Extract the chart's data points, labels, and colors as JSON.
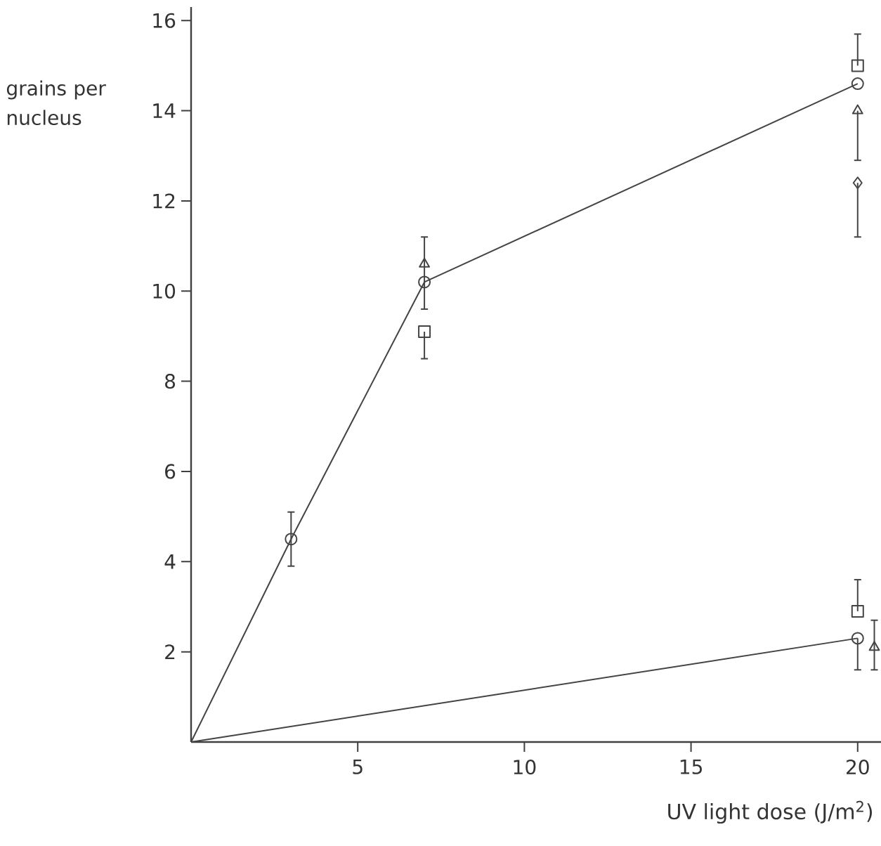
{
  "chart_data": {
    "type": "scatter",
    "xlabel": "UV light dose (J/m$^{2}$)",
    "ylabel": "grains per nucleus",
    "xlim": [
      0,
      20.7
    ],
    "ylim": [
      0,
      16.3
    ],
    "xticks": [
      5,
      10,
      15,
      20
    ],
    "yticks": [
      2,
      4,
      6,
      8,
      10,
      12,
      14,
      16
    ],
    "series": [
      {
        "type": "line",
        "marker": "none",
        "color": "#444444",
        "x": [
          0,
          3,
          7,
          20
        ],
        "values": [
          0,
          4.5,
          10.2,
          14.6
        ]
      },
      {
        "type": "line",
        "marker": "none",
        "color": "#444444",
        "x": [
          0,
          20
        ],
        "values": [
          0,
          2.3
        ]
      },
      {
        "marker": "circle",
        "color": "#444444",
        "x": [
          3,
          7,
          20
        ],
        "values": [
          4.5,
          10.2,
          14.6
        ],
        "errors": [
          [
            3.9,
            5.1
          ],
          [
            9.6,
            11.2
          ],
          null
        ]
      },
      {
        "marker": "triangle",
        "color": "#444444",
        "x": [
          7,
          20
        ],
        "values": [
          10.6,
          14.0
        ],
        "errors": [
          null,
          [
            12.9,
            14.0
          ]
        ]
      },
      {
        "marker": "square",
        "color": "#444444",
        "x": [
          7,
          20
        ],
        "values": [
          9.1,
          15.0
        ],
        "errors": [
          [
            8.5,
            9.1
          ],
          [
            15.0,
            15.7
          ]
        ]
      },
      {
        "marker": "diamond",
        "color": "#444444",
        "x": [
          20
        ],
        "values": [
          12.4
        ],
        "errors": [
          [
            11.2,
            12.4
          ]
        ]
      },
      {
        "marker": "circle",
        "color": "#444444",
        "x": [
          20
        ],
        "values": [
          2.3
        ],
        "errors": [
          [
            1.6,
            2.3
          ]
        ]
      },
      {
        "marker": "square",
        "color": "#444444",
        "x": [
          20
        ],
        "values": [
          2.9
        ],
        "errors": [
          [
            2.9,
            3.6
          ]
        ]
      },
      {
        "marker": "triangle",
        "color": "#444444",
        "x": [
          20.5
        ],
        "values": [
          2.1
        ],
        "errors": [
          [
            1.6,
            2.7
          ]
        ]
      }
    ]
  }
}
